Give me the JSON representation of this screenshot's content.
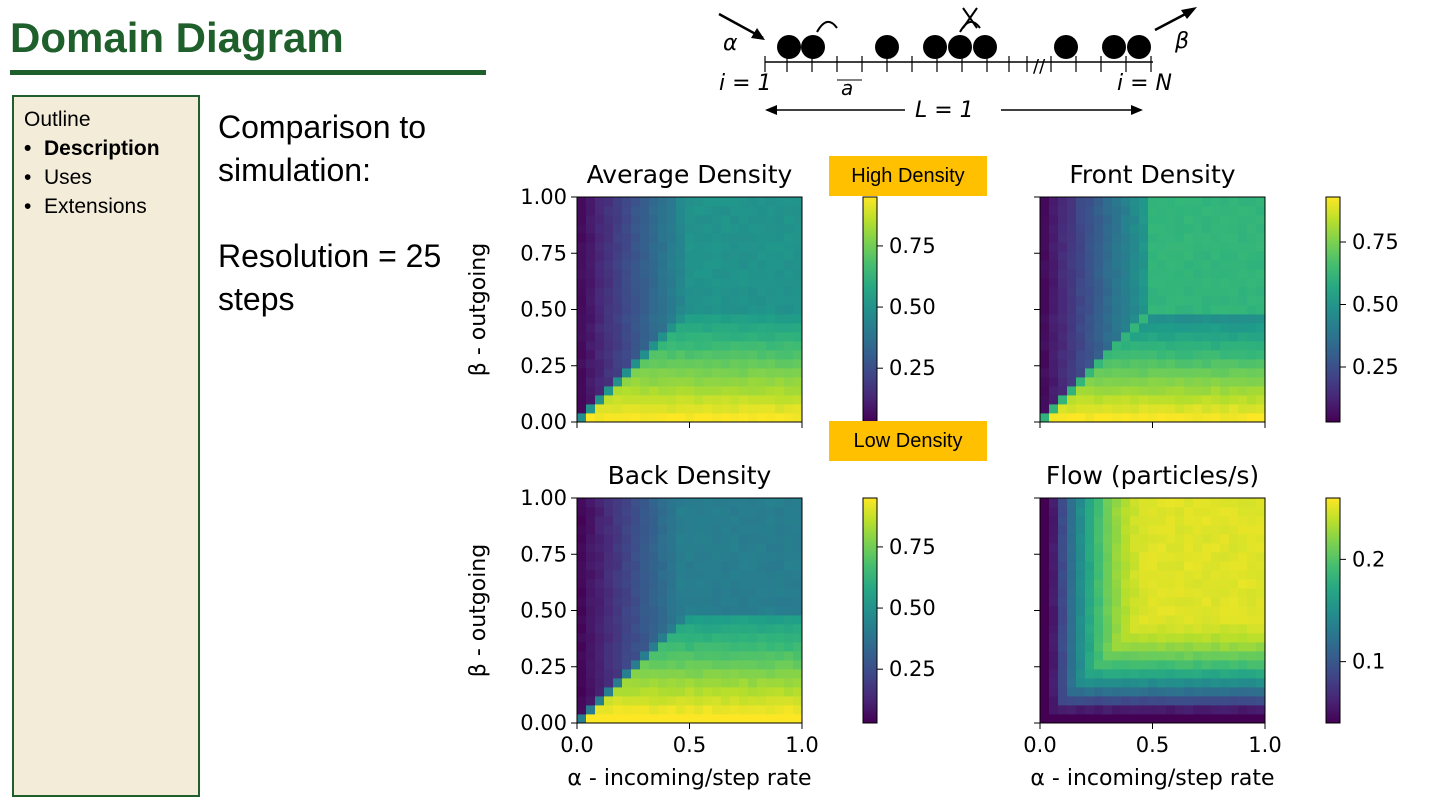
{
  "slide": {
    "title": "Domain Diagram"
  },
  "outline": {
    "heading": "Outline",
    "items": [
      {
        "label": "Description",
        "active": true
      },
      {
        "label": "Uses",
        "active": false
      },
      {
        "label": "Extensions",
        "active": false
      }
    ]
  },
  "body": {
    "line1": "Comparison to simulation:",
    "line2": "Resolution = 25 steps"
  },
  "callouts": {
    "high": "High Density",
    "low": "Low Density"
  },
  "lattice": {
    "alpha": "α",
    "beta": "β",
    "left_index": "i = 1",
    "right_index": "i = N",
    "spacing": "a",
    "length": "L = 1"
  },
  "chart_data": [
    {
      "type": "heatmap",
      "title": "Average Density",
      "xlabel": "",
      "ylabel": "β - outgoing",
      "xlim": [
        0,
        1
      ],
      "ylim": [
        0,
        1
      ],
      "resolution": 25,
      "xticks": [
        "0.0",
        "0.5",
        "1.0"
      ],
      "yticks": [
        "0.00",
        "0.25",
        "0.50",
        "0.75",
        "1.00"
      ],
      "colormap": "viridis",
      "colorbar_range": [
        0.03,
        0.95
      ],
      "colorbar_ticks": [
        "0.25",
        "0.50",
        "0.75"
      ],
      "show_xtick_labels": false,
      "show_ytick_labels": true,
      "kind": "avg"
    },
    {
      "type": "heatmap",
      "title": "Front Density",
      "xlabel": "",
      "ylabel": "",
      "xlim": [
        0,
        1
      ],
      "ylim": [
        0,
        1
      ],
      "resolution": 25,
      "xticks": [
        "0.0",
        "0.5",
        "1.0"
      ],
      "yticks": [
        "0.00",
        "0.25",
        "0.50",
        "0.75",
        "1.00"
      ],
      "colormap": "viridis",
      "colorbar_range": [
        0.03,
        0.93
      ],
      "colorbar_ticks": [
        "0.25",
        "0.50",
        "0.75"
      ],
      "show_xtick_labels": false,
      "show_ytick_labels": false,
      "kind": "front"
    },
    {
      "type": "heatmap",
      "title": "Back Density",
      "xlabel": "α - incoming/step rate",
      "ylabel": "β - outgoing",
      "xlim": [
        0,
        1
      ],
      "ylim": [
        0,
        1
      ],
      "resolution": 25,
      "xticks": [
        "0.0",
        "0.5",
        "1.0"
      ],
      "yticks": [
        "0.00",
        "0.25",
        "0.50",
        "0.75",
        "1.00"
      ],
      "colormap": "viridis",
      "colorbar_range": [
        0.03,
        0.95
      ],
      "colorbar_ticks": [
        "0.25",
        "0.50",
        "0.75"
      ],
      "show_xtick_labels": true,
      "show_ytick_labels": true,
      "kind": "back"
    },
    {
      "type": "heatmap",
      "title": "Flow (particles/s)",
      "xlabel": "α - incoming/step rate",
      "ylabel": "",
      "xlim": [
        0,
        1
      ],
      "ylim": [
        0,
        1
      ],
      "resolution": 25,
      "xticks": [
        "0.0",
        "0.5",
        "1.0"
      ],
      "yticks": [
        "0.00",
        "0.25",
        "0.50",
        "0.75",
        "1.00"
      ],
      "colormap": "viridis",
      "colorbar_range": [
        0.04,
        0.26
      ],
      "colorbar_ticks": [
        "0.1",
        "0.2"
      ],
      "show_xtick_labels": true,
      "show_ytick_labels": false,
      "kind": "flow"
    }
  ]
}
